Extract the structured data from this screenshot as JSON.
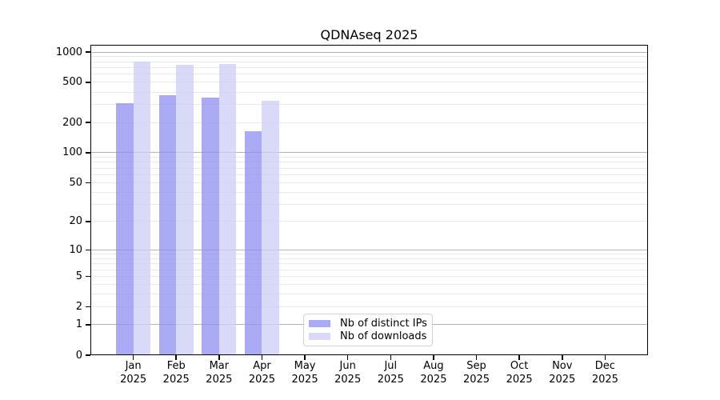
{
  "chart_data": {
    "type": "bar",
    "title": "QDNAseq 2025",
    "categories": [
      "Jan 2025",
      "Feb 2025",
      "Mar 2025",
      "Apr 2025",
      "May 2025",
      "Jun 2025",
      "Jul 2025",
      "Aug 2025",
      "Sep 2025",
      "Oct 2025",
      "Nov 2025",
      "Dec 2025"
    ],
    "series": [
      {
        "name": "Nb of distinct IPs",
        "color": "rgba(141,141,241,0.75)",
        "values": [
          310,
          370,
          355,
          165,
          null,
          null,
          null,
          null,
          null,
          null,
          null,
          null
        ]
      },
      {
        "name": "Nb of downloads",
        "color": "rgba(204,204,246,0.75)",
        "values": [
          810,
          750,
          760,
          330,
          null,
          null,
          null,
          null,
          null,
          null,
          null,
          null
        ]
      }
    ],
    "xlabel": "",
    "ylabel": "",
    "y_scale": "log10(value+1)",
    "ylim": [
      0,
      1180
    ],
    "y_ticks": [
      0,
      1,
      2,
      5,
      10,
      20,
      50,
      100,
      200,
      500,
      1000
    ],
    "grid_major": [
      1,
      10,
      100,
      1000
    ],
    "grid_minor": [
      2,
      3,
      4,
      5,
      6,
      7,
      8,
      9,
      20,
      30,
      40,
      50,
      60,
      70,
      80,
      90,
      200,
      300,
      400,
      500,
      600,
      700,
      800,
      900
    ],
    "grid": "horizontal",
    "legend_position": "lower center inside plot"
  },
  "colors": {
    "grid_major": "#b3b3b3",
    "grid_minor": "#e9e9e9",
    "spine": "#000000",
    "text": "#000000",
    "background": "#ffffff"
  }
}
